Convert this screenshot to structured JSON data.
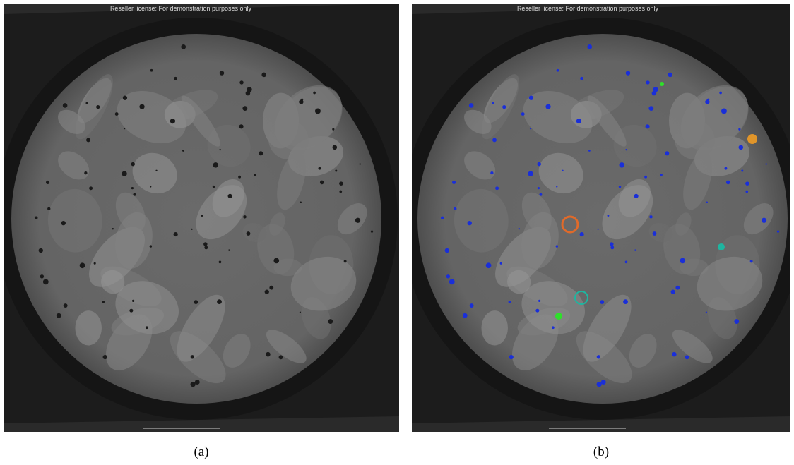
{
  "panels": [
    {
      "watermark": "Reseller license: For demonstration purposes only",
      "caption": "(a)"
    },
    {
      "watermark": "Reseller license: For demonstration purposes only",
      "caption": "(b)"
    }
  ]
}
